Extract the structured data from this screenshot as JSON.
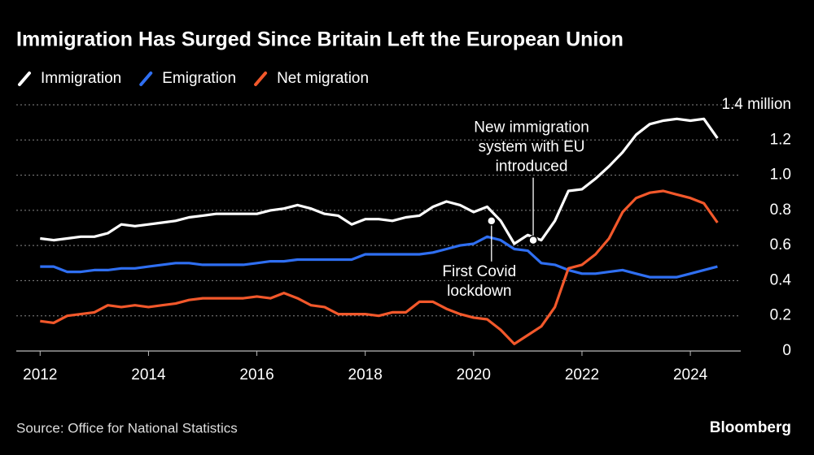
{
  "chart_data": {
    "type": "line",
    "title": "Immigration Has Surged Since Britain Left the European Union",
    "source": "Source: Office for National Statistics",
    "brand": "Bloomberg",
    "x": [
      2012,
      2012.25,
      2012.5,
      2012.75,
      2013,
      2013.25,
      2013.5,
      2013.75,
      2014,
      2014.25,
      2014.5,
      2014.75,
      2015,
      2015.25,
      2015.5,
      2015.75,
      2016,
      2016.25,
      2016.5,
      2016.75,
      2017,
      2017.25,
      2017.5,
      2017.75,
      2018,
      2018.25,
      2018.5,
      2018.75,
      2019,
      2019.25,
      2019.5,
      2019.75,
      2020,
      2020.25,
      2020.5,
      2020.75,
      2021,
      2021.25,
      2021.5,
      2021.75,
      2022,
      2022.25,
      2022.5,
      2022.75,
      2023,
      2023.25,
      2023.5,
      2023.75,
      2024,
      2024.25,
      2024.5
    ],
    "series": [
      {
        "name": "Immigration",
        "color": "#ffffff",
        "values": [
          0.64,
          0.63,
          0.64,
          0.65,
          0.65,
          0.67,
          0.72,
          0.71,
          0.72,
          0.73,
          0.74,
          0.76,
          0.77,
          0.78,
          0.78,
          0.78,
          0.78,
          0.8,
          0.81,
          0.83,
          0.81,
          0.78,
          0.77,
          0.72,
          0.75,
          0.75,
          0.74,
          0.76,
          0.77,
          0.82,
          0.85,
          0.83,
          0.79,
          0.82,
          0.74,
          0.61,
          0.66,
          0.63,
          0.74,
          0.91,
          0.92,
          0.98,
          1.05,
          1.13,
          1.23,
          1.29,
          1.31,
          1.32,
          1.31,
          1.32,
          1.21
        ]
      },
      {
        "name": "Emigration",
        "color": "#2f6ff2",
        "values": [
          0.48,
          0.48,
          0.45,
          0.45,
          0.46,
          0.46,
          0.47,
          0.47,
          0.48,
          0.49,
          0.5,
          0.5,
          0.49,
          0.49,
          0.49,
          0.49,
          0.5,
          0.51,
          0.51,
          0.52,
          0.52,
          0.52,
          0.52,
          0.52,
          0.55,
          0.55,
          0.55,
          0.55,
          0.55,
          0.56,
          0.58,
          0.6,
          0.61,
          0.65,
          0.63,
          0.58,
          0.57,
          0.5,
          0.49,
          0.46,
          0.44,
          0.44,
          0.45,
          0.46,
          0.44,
          0.42,
          0.42,
          0.42,
          0.44,
          0.46,
          0.48
        ]
      },
      {
        "name": "Net migration",
        "color": "#f2582b",
        "values": [
          0.17,
          0.16,
          0.2,
          0.21,
          0.22,
          0.26,
          0.25,
          0.26,
          0.25,
          0.26,
          0.27,
          0.29,
          0.3,
          0.3,
          0.3,
          0.3,
          0.31,
          0.3,
          0.33,
          0.3,
          0.26,
          0.25,
          0.21,
          0.21,
          0.21,
          0.2,
          0.22,
          0.22,
          0.28,
          0.28,
          0.24,
          0.21,
          0.19,
          0.18,
          0.12,
          0.04,
          0.09,
          0.14,
          0.25,
          0.47,
          0.49,
          0.55,
          0.64,
          0.79,
          0.87,
          0.9,
          0.91,
          0.89,
          0.87,
          0.84,
          0.73
        ]
      }
    ],
    "annotations": [
      {
        "lines": [
          "New immigration",
          "system with EU",
          "introduced"
        ],
        "x": 2021.1,
        "y": 0.63
      },
      {
        "lines": [
          "First Covid",
          "lockdown"
        ],
        "x": 2020.33,
        "y": 0.74
      }
    ],
    "xlim": [
      2011.56,
      2024.93
    ],
    "xticks": [
      2012,
      2014,
      2016,
      2018,
      2020,
      2022,
      2024
    ],
    "ylim": [
      0,
      1.4
    ],
    "yticks": [
      0,
      0.2,
      0.4,
      0.6,
      0.8,
      {
        "value": 1,
        "label": "1.0"
      },
      1.2,
      {
        "value": 1.4,
        "label": "1.4 million"
      }
    ],
    "grid": true
  }
}
